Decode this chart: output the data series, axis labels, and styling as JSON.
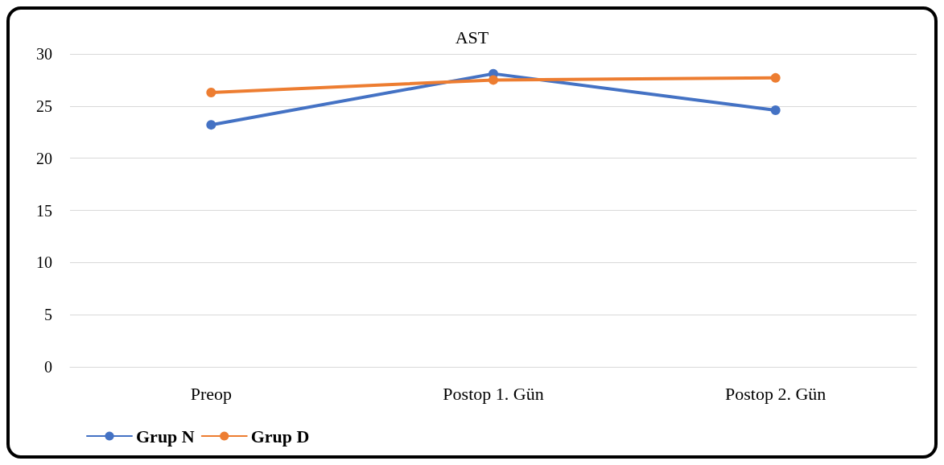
{
  "chart_data": {
    "type": "line",
    "title": "AST",
    "categories": [
      "Preop",
      "Postop 1. Gün",
      "Postop 2. Gün"
    ],
    "series": [
      {
        "name": "Grup N",
        "color": "#4472c4",
        "values": [
          23.2,
          28.1,
          24.6
        ]
      },
      {
        "name": "Grup D",
        "color": "#ed7d31",
        "values": [
          26.3,
          27.5,
          27.7
        ]
      }
    ],
    "ylim": [
      0,
      30
    ],
    "yticks": [
      0,
      5,
      10,
      15,
      20,
      25,
      30
    ],
    "grid": "y",
    "legend": "bottom left",
    "marker": "circle",
    "line_style": "solid"
  }
}
